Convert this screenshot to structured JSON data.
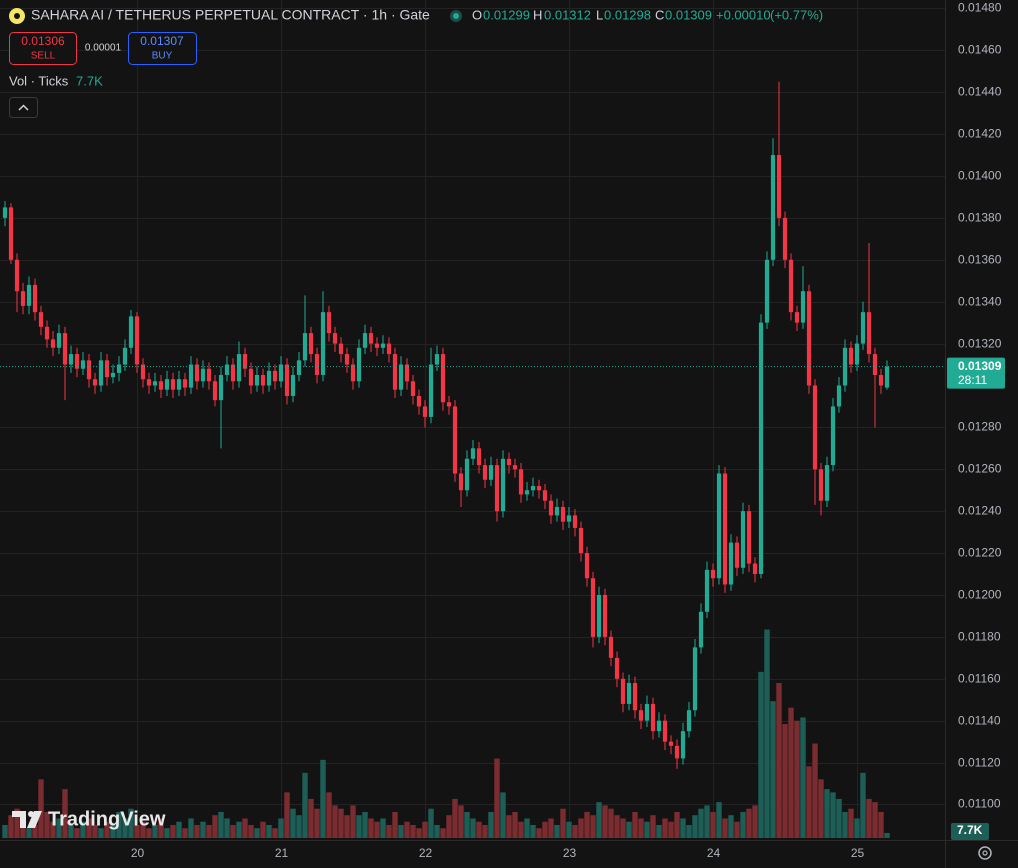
{
  "chart_data": {
    "type": "candlestick",
    "title": "SAHARA AI / TETHERUS PERPETUAL CONTRACT · 1h · Gate",
    "ohlc_labels": [
      "O",
      "H",
      "L",
      "C"
    ],
    "change": {
      "value": 0.0001,
      "label": "+0.00010"
    },
    "change_pct": {
      "value": 0.77,
      "label": "(+0.77%)"
    },
    "sell": {
      "label": "SELL",
      "value": 0.01306
    },
    "buy": {
      "label": "BUY",
      "value": 0.01307
    },
    "spread": 1e-05,
    "volume_title": "Vol · Ticks",
    "volume_label": "7.7K",
    "countdown": "28:11",
    "watermark": "TradingView",
    "up_color": "#22ab94",
    "down_color": "#f23645",
    "volume_up_color": "#1d5f57",
    "volume_down_color": "#7b2c30",
    "grid": true,
    "ylim": [
      0.01084,
      0.01484
    ],
    "yticks": [
      {
        "value": 0.011,
        "label": "0.01100"
      },
      {
        "value": 0.0112,
        "label": "0.01120"
      },
      {
        "value": 0.0114,
        "label": "0.01140"
      },
      {
        "value": 0.0116,
        "label": "0.01160"
      },
      {
        "value": 0.0118,
        "label": "0.01180"
      },
      {
        "value": 0.012,
        "label": "0.01200"
      },
      {
        "value": 0.0122,
        "label": "0.01220"
      },
      {
        "value": 0.0124,
        "label": "0.01240"
      },
      {
        "value": 0.0126,
        "label": "0.01260"
      },
      {
        "value": 0.0128,
        "label": "0.01280"
      },
      {
        "value": 0.0132,
        "label": "0.01320"
      },
      {
        "value": 0.0134,
        "label": "0.01340"
      },
      {
        "value": 0.0136,
        "label": "0.01360"
      },
      {
        "value": 0.0138,
        "label": "0.01380"
      },
      {
        "value": 0.014,
        "label": "0.01400"
      },
      {
        "value": 0.0142,
        "label": "0.01420"
      },
      {
        "value": 0.0144,
        "label": "0.01440"
      },
      {
        "value": 0.0146,
        "label": "0.01460"
      },
      {
        "value": 0.0148,
        "label": "0.01480"
      }
    ],
    "volume_ylim": [
      0,
      330000
    ],
    "categories": [
      null,
      null,
      null,
      null,
      null,
      null,
      null,
      null,
      null,
      null,
      null,
      null,
      null,
      null,
      null,
      null,
      null,
      null,
      null,
      null,
      null,
      null,
      "20",
      null,
      null,
      null,
      null,
      null,
      null,
      null,
      null,
      null,
      null,
      null,
      null,
      null,
      null,
      null,
      null,
      null,
      null,
      null,
      null,
      null,
      null,
      null,
      "21",
      null,
      null,
      null,
      null,
      null,
      null,
      null,
      null,
      null,
      null,
      null,
      null,
      null,
      null,
      null,
      null,
      null,
      null,
      null,
      null,
      null,
      null,
      null,
      "22",
      null,
      null,
      null,
      null,
      null,
      null,
      null,
      null,
      null,
      null,
      null,
      null,
      null,
      null,
      null,
      null,
      null,
      null,
      null,
      null,
      null,
      null,
      null,
      "23",
      null,
      null,
      null,
      null,
      null,
      null,
      null,
      null,
      null,
      null,
      null,
      null,
      null,
      null,
      null,
      null,
      null,
      null,
      null,
      null,
      null,
      null,
      null,
      "24",
      null,
      null,
      null,
      null,
      null,
      null,
      null,
      null,
      null,
      null,
      null,
      null,
      null,
      null,
      null,
      null,
      null,
      null,
      null,
      null,
      null,
      null,
      null,
      "25",
      null,
      null,
      null,
      null,
      null
    ],
    "ohlc": [
      [
        0.0138,
        0.01388,
        0.01376,
        0.01385
      ],
      [
        0.01385,
        0.01387,
        0.01358,
        0.0136
      ],
      [
        0.0136,
        0.01363,
        0.01335,
        0.01345
      ],
      [
        0.01345,
        0.01349,
        0.01334,
        0.01338
      ],
      [
        0.01338,
        0.01352,
        0.01334,
        0.01348
      ],
      [
        0.01348,
        0.01351,
        0.01331,
        0.01335
      ],
      [
        0.01335,
        0.01338,
        0.01324,
        0.01328
      ],
      [
        0.01328,
        0.01331,
        0.01318,
        0.01322
      ],
      [
        0.01322,
        0.01326,
        0.01314,
        0.01318
      ],
      [
        0.01318,
        0.01329,
        0.01315,
        0.01325
      ],
      [
        0.01325,
        0.01328,
        0.01293,
        0.0131
      ],
      [
        0.0131,
        0.01319,
        0.01306,
        0.01315
      ],
      [
        0.01315,
        0.01318,
        0.01304,
        0.01308
      ],
      [
        0.01308,
        0.01316,
        0.01305,
        0.01312
      ],
      [
        0.01312,
        0.01315,
        0.01299,
        0.01303
      ],
      [
        0.01303,
        0.01306,
        0.01296,
        0.013
      ],
      [
        0.013,
        0.01316,
        0.01297,
        0.01312
      ],
      [
        0.01312,
        0.01315,
        0.013,
        0.01304
      ],
      [
        0.01304,
        0.0131,
        0.01301,
        0.01306
      ],
      [
        0.01306,
        0.01314,
        0.01302,
        0.0131
      ],
      [
        0.0131,
        0.01322,
        0.01307,
        0.01318
      ],
      [
        0.01318,
        0.01336,
        0.01315,
        0.01333
      ],
      [
        0.01333,
        0.01335,
        0.01306,
        0.0131
      ],
      [
        0.0131,
        0.01313,
        0.01299,
        0.01303
      ],
      [
        0.01303,
        0.01306,
        0.01296,
        0.013
      ],
      [
        0.013,
        0.01306,
        0.01297,
        0.01302
      ],
      [
        0.01302,
        0.01305,
        0.01294,
        0.01298
      ],
      [
        0.01298,
        0.01307,
        0.01295,
        0.01303
      ],
      [
        0.01303,
        0.01306,
        0.01294,
        0.01298
      ],
      [
        0.01298,
        0.01307,
        0.01295,
        0.01303
      ],
      [
        0.01303,
        0.01306,
        0.01295,
        0.01299
      ],
      [
        0.01299,
        0.01314,
        0.01296,
        0.0131
      ],
      [
        0.0131,
        0.01313,
        0.01298,
        0.01302
      ],
      [
        0.01302,
        0.01312,
        0.01299,
        0.01308
      ],
      [
        0.01308,
        0.01311,
        0.01298,
        0.01302
      ],
      [
        0.01302,
        0.01305,
        0.0129,
        0.01293
      ],
      [
        0.01293,
        0.01309,
        0.0127,
        0.01305
      ],
      [
        0.01305,
        0.01314,
        0.01302,
        0.0131
      ],
      [
        0.0131,
        0.01313,
        0.01298,
        0.01302
      ],
      [
        0.01302,
        0.01321,
        0.01299,
        0.01315
      ],
      [
        0.01315,
        0.01318,
        0.01304,
        0.01308
      ],
      [
        0.01308,
        0.01311,
        0.01296,
        0.013
      ],
      [
        0.013,
        0.01309,
        0.01297,
        0.01305
      ],
      [
        0.01305,
        0.01308,
        0.01296,
        0.013
      ],
      [
        0.013,
        0.01311,
        0.01297,
        0.01307
      ],
      [
        0.01307,
        0.0131,
        0.01298,
        0.01302
      ],
      [
        0.01302,
        0.01314,
        0.01299,
        0.0131
      ],
      [
        0.0131,
        0.01313,
        0.01291,
        0.01295
      ],
      [
        0.01295,
        0.01309,
        0.01292,
        0.01305
      ],
      [
        0.01305,
        0.01316,
        0.01302,
        0.01312
      ],
      [
        0.01312,
        0.01343,
        0.01309,
        0.01325
      ],
      [
        0.01325,
        0.01328,
        0.01311,
        0.01315
      ],
      [
        0.01315,
        0.01318,
        0.01301,
        0.01305
      ],
      [
        0.01305,
        0.01345,
        0.01302,
        0.01335
      ],
      [
        0.01335,
        0.01338,
        0.01321,
        0.01325
      ],
      [
        0.01325,
        0.01328,
        0.01316,
        0.0132
      ],
      [
        0.0132,
        0.01323,
        0.01311,
        0.01315
      ],
      [
        0.01315,
        0.01318,
        0.01306,
        0.0131
      ],
      [
        0.0131,
        0.01313,
        0.01298,
        0.01302
      ],
      [
        0.01302,
        0.01322,
        0.01299,
        0.01318
      ],
      [
        0.01318,
        0.01329,
        0.01315,
        0.01325
      ],
      [
        0.01325,
        0.01328,
        0.01316,
        0.0132
      ],
      [
        0.0132,
        0.01323,
        0.01314,
        0.01318
      ],
      [
        0.01318,
        0.01324,
        0.01315,
        0.0132
      ],
      [
        0.0132,
        0.01323,
        0.01311,
        0.01315
      ],
      [
        0.01315,
        0.01318,
        0.01294,
        0.01298
      ],
      [
        0.01298,
        0.01314,
        0.01295,
        0.0131
      ],
      [
        0.0131,
        0.01313,
        0.01298,
        0.01302
      ],
      [
        0.01302,
        0.01305,
        0.01291,
        0.01295
      ],
      [
        0.01295,
        0.01298,
        0.01286,
        0.0129
      ],
      [
        0.0129,
        0.01293,
        0.0128,
        0.01285
      ],
      [
        0.01285,
        0.01318,
        0.01282,
        0.0131
      ],
      [
        0.0131,
        0.01319,
        0.01307,
        0.01315
      ],
      [
        0.01315,
        0.01318,
        0.01288,
        0.01292
      ],
      [
        0.01292,
        0.01295,
        0.01286,
        0.0129
      ],
      [
        0.0129,
        0.01293,
        0.01254,
        0.01258
      ],
      [
        0.01258,
        0.01261,
        0.01242,
        0.0125
      ],
      [
        0.0125,
        0.01269,
        0.01247,
        0.01265
      ],
      [
        0.01265,
        0.01274,
        0.01262,
        0.0127
      ],
      [
        0.0127,
        0.01273,
        0.01258,
        0.01262
      ],
      [
        0.01262,
        0.01265,
        0.01251,
        0.01255
      ],
      [
        0.01255,
        0.01266,
        0.01252,
        0.01262
      ],
      [
        0.01262,
        0.01265,
        0.01235,
        0.0124
      ],
      [
        0.0124,
        0.01269,
        0.01237,
        0.01265
      ],
      [
        0.01265,
        0.01268,
        0.01258,
        0.01262
      ],
      [
        0.01262,
        0.01265,
        0.01256,
        0.0126
      ],
      [
        0.0126,
        0.01263,
        0.01244,
        0.01248
      ],
      [
        0.01248,
        0.01254,
        0.01245,
        0.0125
      ],
      [
        0.0125,
        0.01256,
        0.01247,
        0.01252
      ],
      [
        0.01252,
        0.01255,
        0.01246,
        0.0125
      ],
      [
        0.0125,
        0.01253,
        0.01241,
        0.01245
      ],
      [
        0.01245,
        0.01248,
        0.01234,
        0.01238
      ],
      [
        0.01238,
        0.01246,
        0.01235,
        0.01242
      ],
      [
        0.01242,
        0.01245,
        0.01231,
        0.01235
      ],
      [
        0.01235,
        0.01242,
        0.01232,
        0.01238
      ],
      [
        0.01238,
        0.01241,
        0.01228,
        0.01232
      ],
      [
        0.01232,
        0.01235,
        0.01216,
        0.0122
      ],
      [
        0.0122,
        0.01223,
        0.01204,
        0.01208
      ],
      [
        0.01208,
        0.01211,
        0.01175,
        0.0118
      ],
      [
        0.0118,
        0.01204,
        0.01177,
        0.012
      ],
      [
        0.012,
        0.01203,
        0.01176,
        0.0118
      ],
      [
        0.0118,
        0.01183,
        0.01166,
        0.0117
      ],
      [
        0.0117,
        0.01173,
        0.01156,
        0.0116
      ],
      [
        0.0116,
        0.01163,
        0.01144,
        0.01148
      ],
      [
        0.01148,
        0.01162,
        0.01145,
        0.01158
      ],
      [
        0.01158,
        0.01161,
        0.01141,
        0.01145
      ],
      [
        0.01145,
        0.01148,
        0.01136,
        0.0114
      ],
      [
        0.0114,
        0.01152,
        0.01137,
        0.01148
      ],
      [
        0.01148,
        0.01151,
        0.01131,
        0.01135
      ],
      [
        0.01135,
        0.01144,
        0.01132,
        0.0114
      ],
      [
        0.0114,
        0.01143,
        0.01126,
        0.0113
      ],
      [
        0.0113,
        0.01133,
        0.01124,
        0.01128
      ],
      [
        0.01128,
        0.01131,
        0.01117,
        0.01122
      ],
      [
        0.01122,
        0.01139,
        0.01119,
        0.01135
      ],
      [
        0.01135,
        0.01149,
        0.01132,
        0.01145
      ],
      [
        0.01145,
        0.01179,
        0.01142,
        0.01175
      ],
      [
        0.01175,
        0.01196,
        0.01172,
        0.01192
      ],
      [
        0.01192,
        0.01216,
        0.01189,
        0.01212
      ],
      [
        0.01212,
        0.01215,
        0.01204,
        0.01208
      ],
      [
        0.01208,
        0.01262,
        0.01205,
        0.01258
      ],
      [
        0.01258,
        0.01261,
        0.01201,
        0.01205
      ],
      [
        0.01205,
        0.01229,
        0.01202,
        0.01225
      ],
      [
        0.01225,
        0.01228,
        0.01209,
        0.01213
      ],
      [
        0.01213,
        0.01244,
        0.0121,
        0.0124
      ],
      [
        0.0124,
        0.01243,
        0.01211,
        0.01215
      ],
      [
        0.01215,
        0.01218,
        0.01206,
        0.0121
      ],
      [
        0.0121,
        0.01334,
        0.01208,
        0.0133
      ],
      [
        0.0133,
        0.01364,
        0.01327,
        0.0136
      ],
      [
        0.0136,
        0.01418,
        0.01357,
        0.0141
      ],
      [
        0.0141,
        0.01445,
        0.01376,
        0.0138
      ],
      [
        0.0138,
        0.01383,
        0.01356,
        0.0136
      ],
      [
        0.0136,
        0.01363,
        0.01331,
        0.01335
      ],
      [
        0.01335,
        0.01338,
        0.01326,
        0.0133
      ],
      [
        0.0133,
        0.01357,
        0.01327,
        0.01345
      ],
      [
        0.01345,
        0.01348,
        0.01296,
        0.013
      ],
      [
        0.013,
        0.01303,
        0.01243,
        0.0126
      ],
      [
        0.0126,
        0.01263,
        0.01238,
        0.01245
      ],
      [
        0.01245,
        0.01266,
        0.01242,
        0.01262
      ],
      [
        0.01262,
        0.01294,
        0.01259,
        0.0129
      ],
      [
        0.0129,
        0.01304,
        0.01287,
        0.013
      ],
      [
        0.013,
        0.01322,
        0.01297,
        0.01318
      ],
      [
        0.01318,
        0.01321,
        0.01306,
        0.0131
      ],
      [
        0.0131,
        0.01324,
        0.01307,
        0.0132
      ],
      [
        0.0132,
        0.0134,
        0.01317,
        0.01335
      ],
      [
        0.01335,
        0.01368,
        0.01311,
        0.01315
      ],
      [
        0.01315,
        0.01318,
        0.0128,
        0.01305
      ],
      [
        0.01305,
        0.01308,
        0.01296,
        0.013
      ],
      [
        0.01299,
        0.01312,
        0.01298,
        0.01309
      ]
    ],
    "volume": [
      20000,
      35000,
      45000,
      25000,
      15000,
      20000,
      90000,
      40000,
      25000,
      30000,
      75000,
      20000,
      15000,
      25000,
      30000,
      20000,
      15000,
      25000,
      20000,
      40000,
      30000,
      45000,
      20000,
      25000,
      15000,
      20000,
      30000,
      15000,
      20000,
      25000,
      15000,
      30000,
      20000,
      25000,
      20000,
      35000,
      40000,
      30000,
      20000,
      25000,
      30000,
      20000,
      15000,
      25000,
      20000,
      15000,
      30000,
      70000,
      45000,
      35000,
      100000,
      60000,
      45000,
      120000,
      70000,
      50000,
      45000,
      35000,
      50000,
      35000,
      40000,
      30000,
      25000,
      30000,
      20000,
      40000,
      20000,
      25000,
      20000,
      15000,
      25000,
      45000,
      20000,
      15000,
      35000,
      60000,
      50000,
      40000,
      30000,
      25000,
      20000,
      40000,
      122000,
      70000,
      35000,
      40000,
      25000,
      30000,
      20000,
      15000,
      25000,
      30000,
      20000,
      45000,
      25000,
      20000,
      30000,
      40000,
      35000,
      55000,
      50000,
      45000,
      35000,
      30000,
      25000,
      40000,
      30000,
      25000,
      35000,
      20000,
      30000,
      25000,
      40000,
      30000,
      20000,
      35000,
      45000,
      50000,
      40000,
      55000,
      30000,
      35000,
      25000,
      40000,
      45000,
      50000,
      255000,
      320000,
      210000,
      238000,
      175000,
      200000,
      180000,
      185000,
      110000,
      145000,
      90000,
      75000,
      70000,
      60000,
      40000,
      45000,
      30000,
      100000,
      60000,
      55000,
      40000,
      7700
    ]
  }
}
